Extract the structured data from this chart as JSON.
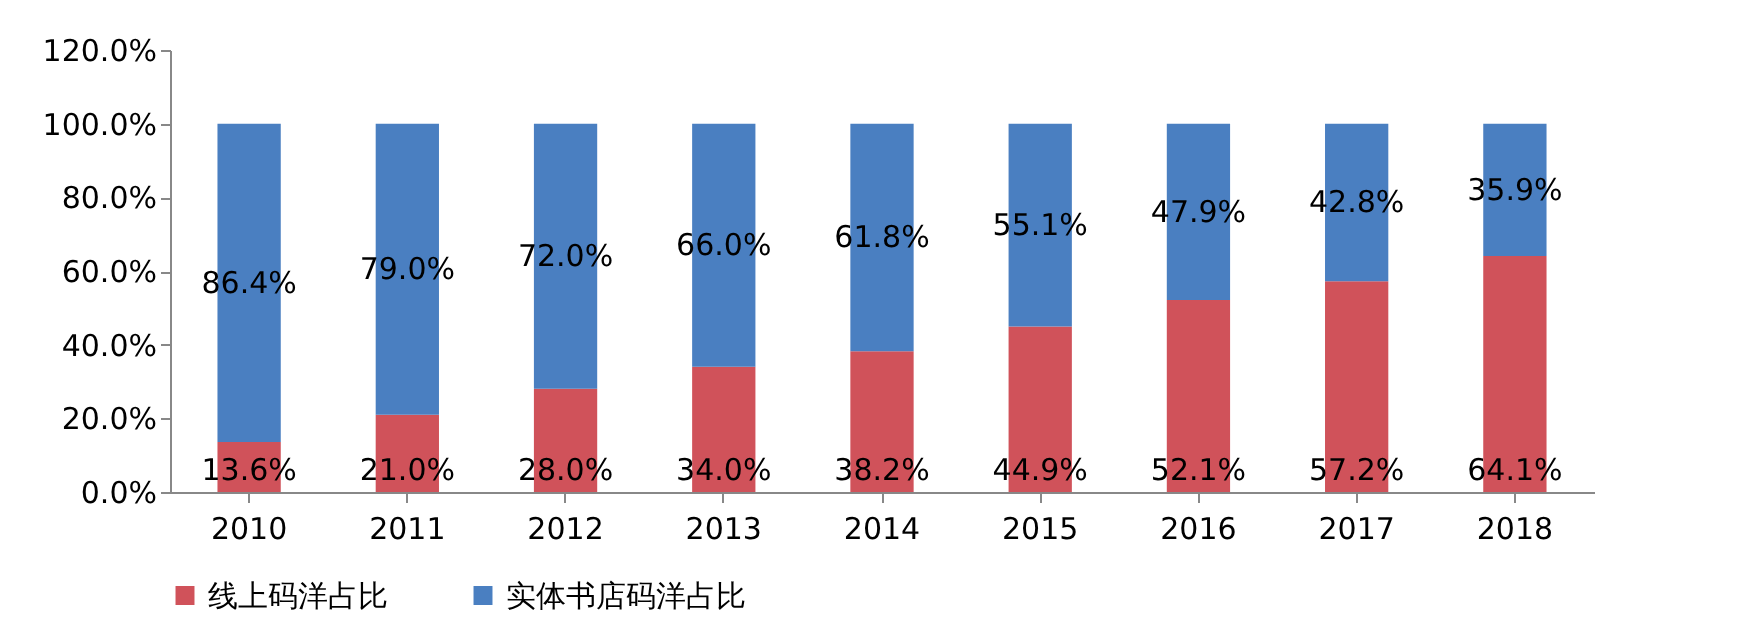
{
  "chart_data": {
    "type": "bar",
    "stacked": true,
    "categories": [
      "2010",
      "2011",
      "2012",
      "2013",
      "2014",
      "2015",
      "2016",
      "2017",
      "2018"
    ],
    "series": [
      {
        "name": "线上码洋占比",
        "color": "#d0525a",
        "values": [
          13.6,
          21.0,
          28.0,
          34.0,
          38.2,
          44.9,
          52.1,
          57.2,
          64.1
        ],
        "value_labels": [
          "13.6%",
          "21.0%",
          "28.0%",
          "34.0%",
          "38.2%",
          "44.9%",
          "52.1%",
          "57.2%",
          "64.1%"
        ]
      },
      {
        "name": "实体书店码洋占比",
        "color": "#4a7fc1",
        "values": [
          86.4,
          79.0,
          72.0,
          66.0,
          61.8,
          55.1,
          47.9,
          42.8,
          35.9
        ],
        "value_labels": [
          "86.4%",
          "79.0%",
          "72.0%",
          "66.0%",
          "61.8%",
          "55.1%",
          "47.9%",
          "42.8%",
          "35.9%"
        ]
      }
    ],
    "ylim": [
      0,
      120
    ],
    "yticks": [
      {
        "value": 0,
        "label": "0.0%"
      },
      {
        "value": 20,
        "label": "20.0%"
      },
      {
        "value": 40,
        "label": "40.0%"
      },
      {
        "value": 60,
        "label": "60.0%"
      },
      {
        "value": 80,
        "label": "80.0%"
      },
      {
        "value": 100,
        "label": "100.0%"
      },
      {
        "value": 120,
        "label": "120.0%"
      }
    ],
    "grid": false,
    "legend": "bottom"
  }
}
